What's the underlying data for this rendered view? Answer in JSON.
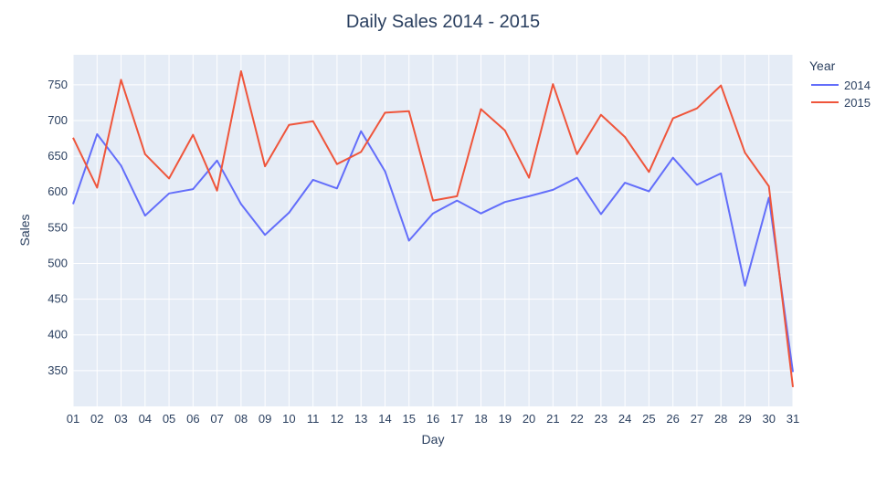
{
  "chart_data": {
    "type": "line",
    "title": "Daily Sales 2014 - 2015",
    "xlabel": "Day",
    "ylabel": "Sales",
    "categories": [
      "01",
      "02",
      "03",
      "04",
      "05",
      "06",
      "07",
      "08",
      "09",
      "10",
      "11",
      "12",
      "13",
      "14",
      "15",
      "16",
      "17",
      "18",
      "19",
      "20",
      "21",
      "22",
      "23",
      "24",
      "25",
      "26",
      "27",
      "28",
      "29",
      "30",
      "31"
    ],
    "yticks": [
      350,
      400,
      450,
      500,
      550,
      600,
      650,
      700,
      750
    ],
    "ylim": [
      300,
      792
    ],
    "grid": true,
    "legend": {
      "title": "Year",
      "position": "top-right"
    },
    "series": [
      {
        "name": "2014",
        "color": "#636efa",
        "values": [
          583,
          681,
          637,
          567,
          598,
          604,
          644,
          583,
          540,
          571,
          617,
          605,
          685,
          629,
          532,
          570,
          588,
          570,
          586,
          594,
          603,
          620,
          569,
          613,
          601,
          648,
          610,
          626,
          469,
          592,
          348
        ]
      },
      {
        "name": "2015",
        "color": "#ef553b",
        "values": [
          676,
          606,
          757,
          653,
          619,
          680,
          602,
          769,
          636,
          694,
          699,
          639,
          656,
          711,
          713,
          588,
          594,
          716,
          686,
          620,
          751,
          653,
          708,
          677,
          628,
          703,
          717,
          749,
          655,
          608,
          327
        ]
      }
    ]
  }
}
